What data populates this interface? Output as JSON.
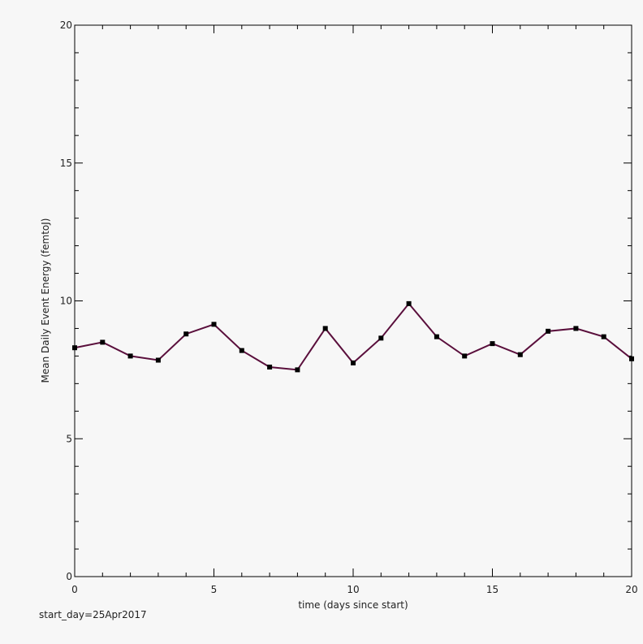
{
  "chart_data": {
    "type": "line",
    "title": "",
    "xlabel": "time (days since start)",
    "ylabel": "Mean Daily Event Energy (femtoJ)",
    "annotation": "start_day=25Apr2017",
    "xlim": [
      0,
      20
    ],
    "ylim": [
      0,
      20
    ],
    "x_major_ticks": [
      0,
      5,
      10,
      15,
      20
    ],
    "y_major_ticks": [
      0,
      5,
      10,
      15,
      20
    ],
    "x_minor_step": 1,
    "y_minor_step": 1,
    "grid": false,
    "line_color": "#5a0f3c",
    "marker_color": "#000000",
    "marker": "square",
    "series": [
      {
        "x": [
          0,
          1,
          2,
          3,
          4,
          5,
          6,
          7,
          8,
          9,
          10,
          11,
          12,
          13,
          14,
          15,
          16,
          17,
          18,
          19,
          20
        ],
        "values": [
          8.3,
          8.5,
          8.0,
          7.85,
          8.8,
          9.15,
          8.2,
          7.6,
          7.5,
          9.0,
          7.75,
          8.65,
          9.9,
          8.7,
          8.0,
          8.45,
          8.05,
          8.9,
          9.0,
          8.7,
          7.9
        ]
      }
    ]
  }
}
